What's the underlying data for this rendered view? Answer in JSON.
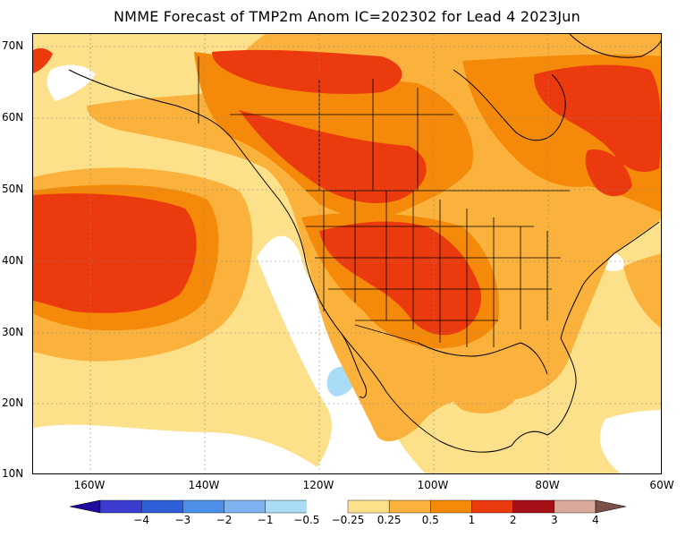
{
  "title": "NMME Forecast of TMP2m Anom IC=202302 for Lead 4 2023Jun",
  "lat_axis": [
    "70N",
    "60N",
    "50N",
    "40N",
    "30N",
    "20N",
    "10N"
  ],
  "lon_axis": [
    "160W",
    "140W",
    "120W",
    "100W",
    "80W",
    "60W"
  ],
  "colorbar": {
    "labels": [
      "−4",
      "−3",
      "−2",
      "−1",
      "−0.5",
      "−0.25",
      "0.25",
      "0.5",
      "1",
      "2",
      "3",
      "4"
    ],
    "colors": [
      "#1f0a9e",
      "#3c3cd0",
      "#2f5fd8",
      "#4c8fe8",
      "#7cb3f0",
      "#a9dcf6",
      "#ffffff",
      "#fde08a",
      "#fbb23c",
      "#f58a0a",
      "#ec3a0f",
      "#a50f15",
      "#d9a89a",
      "#7a5048"
    ]
  },
  "map_colors": {
    "ocean_neutral": "#ffffff",
    "warm_025": "#fde08a",
    "warm_05": "#fbb23c",
    "warm_1": "#f58a0a",
    "warm_2": "#ec3a0f",
    "cool_025": "#a9dcf6"
  }
}
